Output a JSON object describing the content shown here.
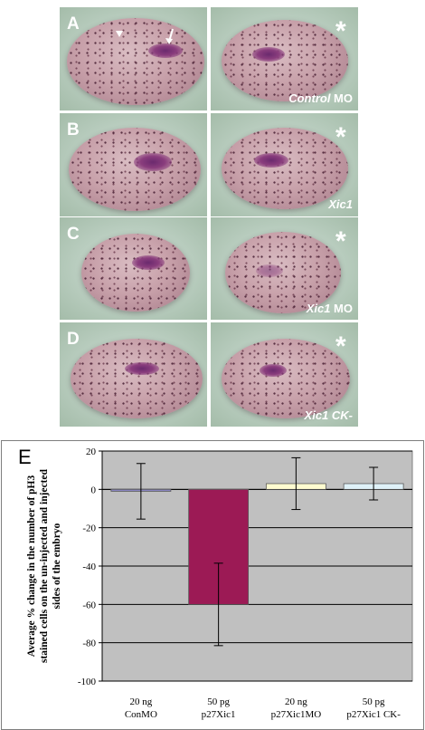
{
  "panels": [
    {
      "letter": "A",
      "condition_italic": "Control",
      "condition_plain": " MO",
      "star": "*"
    },
    {
      "letter": "B",
      "condition_italic": "Xic1",
      "condition_plain": "",
      "star": "*"
    },
    {
      "letter": "C",
      "condition_italic": "Xic1",
      "condition_plain": " MO",
      "star": "*"
    },
    {
      "letter": "D",
      "condition_italic": "Xic1 CK-",
      "condition_plain": "",
      "star": "*"
    }
  ],
  "panel_e_letter": "E",
  "chart_data": {
    "type": "bar",
    "categories": [
      [
        "20 ng",
        "ConMO"
      ],
      [
        "50 pg",
        "p27Xic1"
      ],
      [
        "20 ng",
        "p27Xic1MO"
      ],
      [
        "50 pg",
        "p27Xic1 CK-"
      ]
    ],
    "values": [
      -1,
      -60,
      3,
      3
    ],
    "error": [
      14.5,
      21.5,
      13.5,
      8.5
    ],
    "bar_colors": [
      "#8a86c2",
      "#9c1a55",
      "#fffcd0",
      "#dff1f8"
    ],
    "ylabel_lines": [
      "Average % change in the number of pH3",
      "stained cells on the un-injected and injected",
      "sides of the embryo"
    ],
    "ylim": [
      -100,
      20
    ],
    "yticks": [
      20,
      0,
      -20,
      -40,
      -60,
      -80,
      -100
    ],
    "grid": true,
    "plot_bg": "#c0c0c0"
  }
}
